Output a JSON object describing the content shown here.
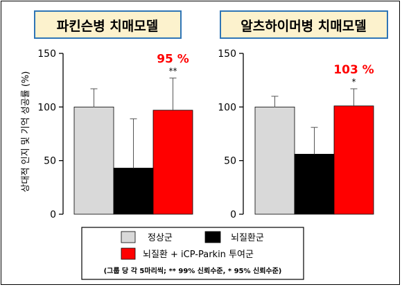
{
  "colors": {
    "title_bg": "#fcf2cd",
    "title_border": "#2e75b6",
    "normal": "#d9d9d9",
    "disease": "#000000",
    "treated": "#ff0000",
    "highlight_text": "#ff0000"
  },
  "y_axis_label": "상대적 인지 및 기억 성공률 (%)",
  "legend": {
    "items": [
      {
        "label": "정상군",
        "color": "#d9d9d9"
      },
      {
        "label": "뇌질환군",
        "color": "#000000"
      },
      {
        "label": "뇌질환 + iCP-Parkin 투여군",
        "color": "#ff0000"
      }
    ],
    "note": "(그룹 당 각 5마리씩; ** 99% 신뢰수준, * 95% 신뢰수준)"
  },
  "chart_data": [
    {
      "type": "bar",
      "title": "파킨슨병 치매모델",
      "categories": [
        "정상군",
        "뇌질환군",
        "뇌질환 + iCP-Parkin 투여군"
      ],
      "values": [
        100,
        43,
        97
      ],
      "error_upper": [
        117,
        89,
        127
      ],
      "ylim": [
        0,
        150
      ],
      "yticks": [
        "0",
        "50",
        "100",
        "150"
      ],
      "highlight_label": "95 %",
      "significance": "**"
    },
    {
      "type": "bar",
      "title": "알츠하이머병 치매모델",
      "categories": [
        "정상군",
        "뇌질환군",
        "뇌질환 + iCP-Parkin 투여군"
      ],
      "values": [
        100,
        56,
        101
      ],
      "error_upper": [
        110,
        81,
        117
      ],
      "ylim": [
        0,
        150
      ],
      "yticks": [
        "0",
        "50",
        "100",
        "150"
      ],
      "highlight_label": "103 %",
      "significance": "*"
    }
  ]
}
